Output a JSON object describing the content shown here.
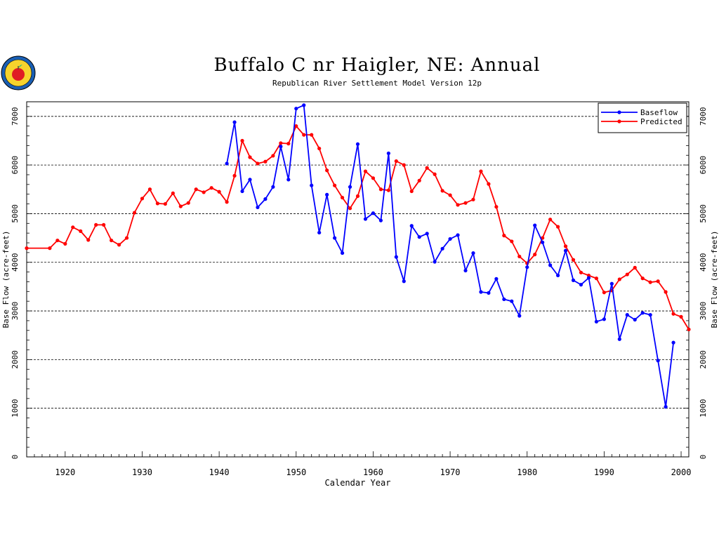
{
  "chart_data": {
    "type": "line",
    "title": "Buffalo C nr Haigler, NE: Annual",
    "subtitle": "Republican River Settlement Model Version 12p",
    "xlabel": "Calendar Year",
    "ylabel": "Base Flow (acre-feet)",
    "xlim": [
      1915,
      2001
    ],
    "ylim": [
      0,
      7300
    ],
    "xticks": [
      1920,
      1930,
      1940,
      1950,
      1960,
      1970,
      1980,
      1990,
      2000
    ],
    "yticks": [
      0,
      1000,
      2000,
      3000,
      4000,
      5000,
      6000,
      7000
    ],
    "grid": "horizontal dashed",
    "legend_position": "top-right",
    "series": [
      {
        "name": "Baseflow",
        "color": "#0000ff",
        "x": [
          1941,
          1942,
          1943,
          1944,
          1945,
          1946,
          1947,
          1948,
          1949,
          1950,
          1951,
          1952,
          1953,
          1954,
          1955,
          1956,
          1957,
          1958,
          1959,
          1960,
          1961,
          1962,
          1963,
          1964,
          1965,
          1966,
          1967,
          1968,
          1969,
          1970,
          1971,
          1972,
          1973,
          1974,
          1975,
          1976,
          1977,
          1978,
          1979,
          1980,
          1981,
          1982,
          1983,
          1984,
          1985,
          1986,
          1987,
          1988,
          1989,
          1990,
          1991,
          1992,
          1993,
          1994,
          1995,
          1996,
          1997,
          1998,
          1999
        ],
        "y": [
          6030,
          6880,
          5460,
          5700,
          5130,
          5300,
          5550,
          6380,
          5700,
          7160,
          7230,
          5580,
          4610,
          5390,
          4500,
          4190,
          5550,
          6430,
          4890,
          5010,
          4860,
          6240,
          4110,
          3610,
          4750,
          4520,
          4590,
          4010,
          4280,
          4480,
          4560,
          3830,
          4190,
          3390,
          3370,
          3660,
          3240,
          3200,
          2900,
          3900,
          4760,
          4410,
          3940,
          3730,
          4240,
          3630,
          3540,
          3680,
          2780,
          2830,
          3560,
          2420,
          2920,
          2820,
          2960,
          2920,
          1980,
          1030,
          2350
        ]
      },
      {
        "name": "Predicted",
        "color": "#ff0000",
        "x": [
          1915,
          1918,
          1919,
          1920,
          1921,
          1922,
          1923,
          1924,
          1925,
          1926,
          1927,
          1928,
          1929,
          1930,
          1931,
          1932,
          1933,
          1934,
          1935,
          1936,
          1937,
          1938,
          1939,
          1940,
          1941,
          1942,
          1943,
          1944,
          1945,
          1946,
          1947,
          1948,
          1949,
          1950,
          1951,
          1952,
          1953,
          1954,
          1955,
          1956,
          1957,
          1958,
          1959,
          1960,
          1961,
          1962,
          1963,
          1964,
          1965,
          1966,
          1967,
          1968,
          1969,
          1970,
          1971,
          1972,
          1973,
          1974,
          1975,
          1976,
          1977,
          1978,
          1979,
          1980,
          1981,
          1982,
          1983,
          1984,
          1985,
          1986,
          1987,
          1988,
          1989,
          1990,
          1991,
          1992,
          1993,
          1994,
          1995,
          1996,
          1997,
          1998,
          1999,
          2000,
          2001
        ],
        "y": [
          4290,
          4290,
          4450,
          4380,
          4720,
          4640,
          4460,
          4770,
          4770,
          4450,
          4360,
          4500,
          5020,
          5310,
          5500,
          5210,
          5200,
          5420,
          5150,
          5220,
          5500,
          5440,
          5530,
          5450,
          5240,
          5780,
          6500,
          6160,
          6030,
          6070,
          6190,
          6450,
          6440,
          6800,
          6620,
          6620,
          6340,
          5890,
          5580,
          5330,
          5110,
          5360,
          5870,
          5730,
          5500,
          5480,
          6080,
          6000,
          5460,
          5680,
          5940,
          5810,
          5470,
          5380,
          5180,
          5220,
          5290,
          5870,
          5610,
          5140,
          4550,
          4430,
          4120,
          3980,
          4160,
          4500,
          4880,
          4730,
          4330,
          4050,
          3790,
          3730,
          3670,
          3380,
          3420,
          3650,
          3750,
          3890,
          3670,
          3590,
          3610,
          3390,
          2940,
          2880,
          2620
        ]
      }
    ]
  }
}
